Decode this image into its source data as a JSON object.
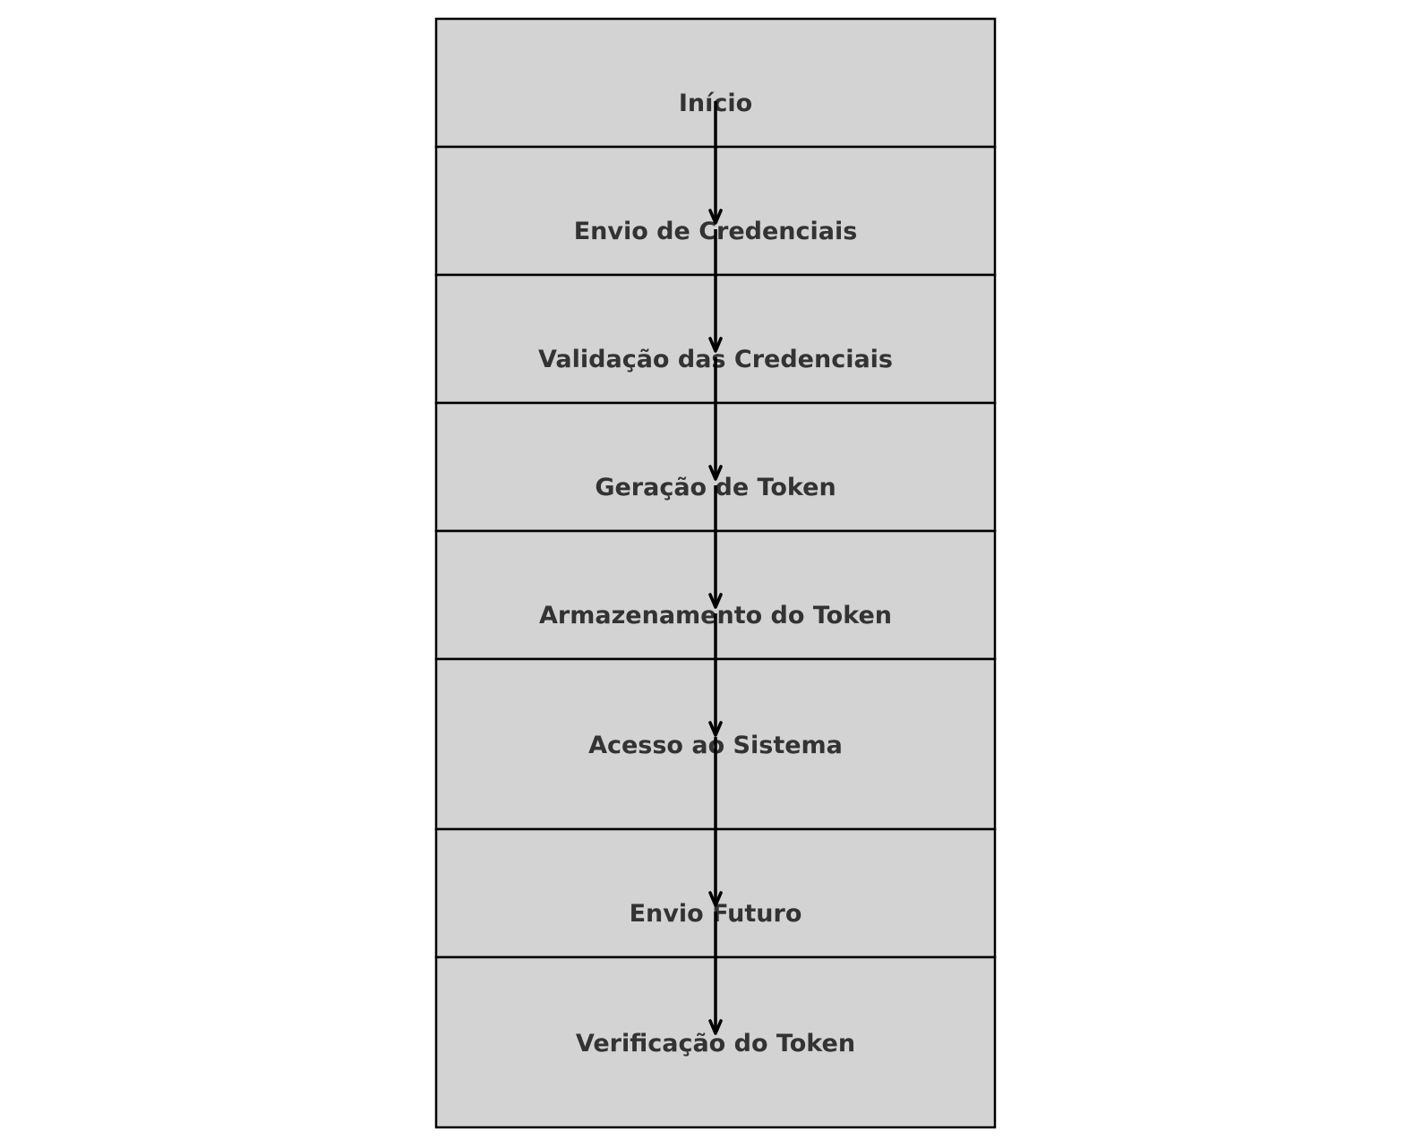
{
  "diagram": {
    "type": "flowchart",
    "direction": "top-to-bottom",
    "steps": [
      {
        "id": "inicio",
        "label": "Início"
      },
      {
        "id": "envio-credenciais",
        "label": "Envio de Credenciais"
      },
      {
        "id": "validacao-credenciais",
        "label": "Validação das Credenciais"
      },
      {
        "id": "geracao-token",
        "label": "Geração de Token"
      },
      {
        "id": "armazenamento-token",
        "label": "Armazenamento do Token"
      },
      {
        "id": "acesso-sistema",
        "label": "Acesso ao Sistema"
      },
      {
        "id": "envio-futuro",
        "label": "Envio Futuro"
      },
      {
        "id": "verificacao-token",
        "label": "Verificação do Token"
      }
    ],
    "edges": [
      {
        "from": "inicio",
        "to": "envio-credenciais"
      },
      {
        "from": "envio-credenciais",
        "to": "validacao-credenciais"
      },
      {
        "from": "validacao-credenciais",
        "to": "geracao-token"
      },
      {
        "from": "geracao-token",
        "to": "armazenamento-token"
      },
      {
        "from": "armazenamento-token",
        "to": "acesso-sistema"
      },
      {
        "from": "acesso-sistema",
        "to": "envio-futuro"
      },
      {
        "from": "envio-futuro",
        "to": "verificacao-token"
      }
    ],
    "colors": {
      "box_fill": "#d3d3d3",
      "box_stroke": "#000000",
      "text": "#333333",
      "arrow": "#000000"
    }
  }
}
